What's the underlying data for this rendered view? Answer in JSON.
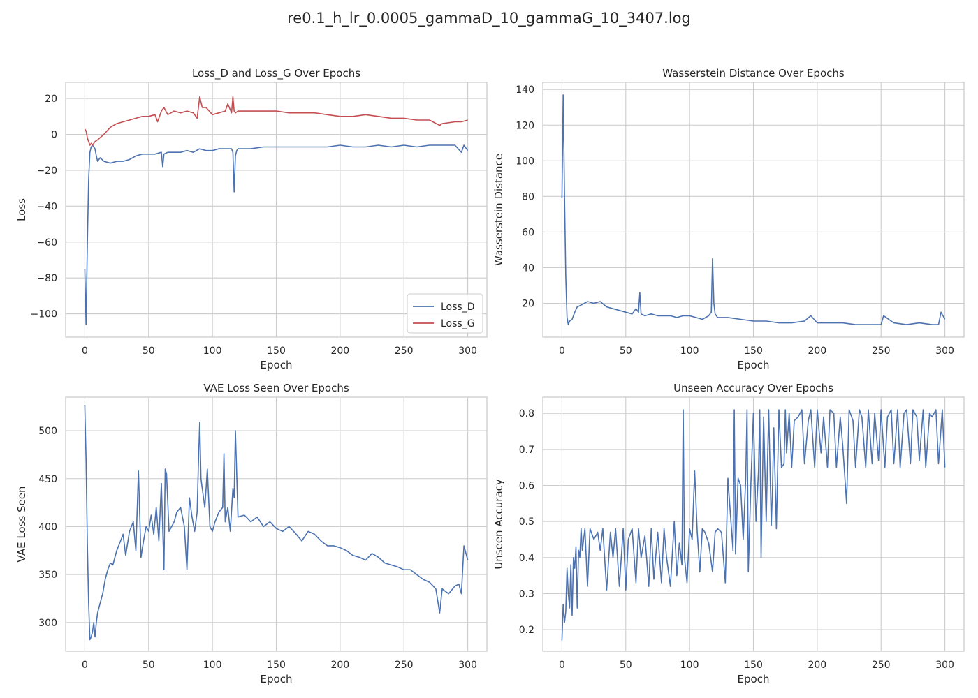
{
  "figure": {
    "title": "re0.1_h_lr_0.0005_gammaD_10_gammaG_10_3407.log"
  },
  "colors": {
    "blue": "#4c72b0",
    "red": "#c44e52",
    "grid": "#cccccc",
    "spine": "#cccccc",
    "text": "#262626"
  },
  "chart_data": [
    {
      "type": "line",
      "title": "Loss_D and Loss_G Over Epochs",
      "xlabel": "Epoch",
      "ylabel": "Loss",
      "xlim": [
        -15,
        315
      ],
      "ylim": [
        -113,
        29
      ],
      "xticks": [
        0,
        50,
        100,
        150,
        200,
        250,
        300
      ],
      "yticks": [
        -100,
        -80,
        -60,
        -40,
        -20,
        0,
        20
      ],
      "legend": "lower-right",
      "series": [
        {
          "name": "Loss_D",
          "color": "#4c72b0",
          "x": [
            0,
            1,
            2,
            3,
            4,
            5,
            6,
            7,
            8,
            9,
            10,
            12,
            15,
            20,
            25,
            30,
            35,
            40,
            45,
            50,
            55,
            60,
            61,
            62,
            65,
            70,
            75,
            80,
            85,
            90,
            95,
            100,
            105,
            110,
            115,
            116,
            117,
            118,
            119,
            120,
            125,
            130,
            140,
            150,
            160,
            170,
            180,
            190,
            200,
            210,
            220,
            230,
            240,
            250,
            260,
            270,
            280,
            290,
            295,
            297,
            300
          ],
          "values": [
            -75,
            -106,
            -60,
            -25,
            -10,
            -7,
            -6,
            -7,
            -8,
            -12,
            -15,
            -13,
            -15,
            -16,
            -15,
            -15,
            -14,
            -12,
            -11,
            -11,
            -11,
            -10,
            -18,
            -11,
            -10,
            -10,
            -10,
            -9,
            -10,
            -8,
            -9,
            -9,
            -8,
            -8,
            -8,
            -10,
            -32,
            -12,
            -9,
            -8,
            -8,
            -8,
            -7,
            -7,
            -7,
            -7,
            -7,
            -7,
            -6,
            -7,
            -7,
            -6,
            -7,
            -6,
            -7,
            -6,
            -6,
            -6,
            -10,
            -6,
            -9
          ]
        },
        {
          "name": "Loss_G",
          "color": "#c44e52",
          "x": [
            0,
            1,
            2,
            3,
            4,
            5,
            6,
            8,
            10,
            15,
            20,
            25,
            30,
            35,
            40,
            45,
            50,
            55,
            57,
            60,
            62,
            65,
            70,
            75,
            80,
            85,
            88,
            90,
            92,
            95,
            100,
            105,
            110,
            112,
            115,
            116,
            117,
            118,
            120,
            125,
            130,
            140,
            150,
            160,
            170,
            180,
            190,
            200,
            210,
            220,
            230,
            240,
            250,
            260,
            270,
            278,
            280,
            290,
            295,
            300
          ],
          "values": [
            3,
            2,
            -2,
            -4,
            -6,
            -5,
            -6,
            -4,
            -3,
            0,
            4,
            6,
            7,
            8,
            9,
            10,
            10,
            11,
            7,
            13,
            15,
            11,
            13,
            12,
            13,
            12,
            9,
            21,
            15,
            15,
            11,
            12,
            13,
            17,
            12,
            21,
            13,
            12,
            13,
            13,
            13,
            13,
            13,
            12,
            12,
            12,
            11,
            10,
            10,
            11,
            10,
            9,
            9,
            8,
            8,
            5,
            6,
            7,
            7,
            8
          ]
        }
      ]
    },
    {
      "type": "line",
      "title": "Wasserstein Distance Over Epochs",
      "xlabel": "Epoch",
      "ylabel": "Wasserstein Distance",
      "xlim": [
        -15,
        315
      ],
      "ylim": [
        1,
        144
      ],
      "xticks": [
        0,
        50,
        100,
        150,
        200,
        250,
        300
      ],
      "yticks": [
        20,
        40,
        60,
        80,
        100,
        120,
        140
      ],
      "series": [
        {
          "name": "",
          "color": "#4c72b0",
          "x": [
            0,
            1,
            2,
            3,
            4,
            5,
            6,
            8,
            10,
            12,
            15,
            20,
            25,
            30,
            35,
            40,
            45,
            50,
            55,
            58,
            60,
            61,
            62,
            65,
            70,
            75,
            80,
            85,
            90,
            95,
            100,
            105,
            110,
            115,
            117,
            118,
            119,
            120,
            122,
            125,
            130,
            140,
            150,
            160,
            170,
            180,
            190,
            195,
            200,
            210,
            220,
            230,
            240,
            250,
            252,
            260,
            270,
            280,
            290,
            295,
            297,
            300
          ],
          "values": [
            79,
            137,
            80,
            35,
            12,
            8,
            10,
            11,
            15,
            18,
            19,
            21,
            20,
            21,
            18,
            17,
            16,
            15,
            14,
            17,
            15,
            26,
            14,
            13,
            14,
            13,
            13,
            13,
            12,
            13,
            13,
            12,
            11,
            13,
            15,
            45,
            20,
            14,
            12,
            12,
            12,
            11,
            10,
            10,
            9,
            9,
            10,
            13,
            9,
            9,
            9,
            8,
            8,
            8,
            13,
            9,
            8,
            9,
            8,
            8,
            15,
            11
          ]
        }
      ]
    },
    {
      "type": "line",
      "title": "VAE Loss Seen Over Epochs",
      "xlabel": "Epoch",
      "ylabel": "VAE Loss Seen",
      "xlim": [
        -15,
        315
      ],
      "ylim": [
        270,
        535
      ],
      "xticks": [
        0,
        50,
        100,
        150,
        200,
        250,
        300
      ],
      "yticks": [
        300,
        350,
        400,
        450,
        500
      ],
      "series": [
        {
          "name": "",
          "color": "#4c72b0",
          "x": [
            0,
            1,
            2,
            3,
            4,
            5,
            6,
            7,
            8,
            9,
            10,
            12,
            14,
            16,
            18,
            20,
            22,
            25,
            28,
            30,
            32,
            35,
            38,
            40,
            42,
            44,
            46,
            48,
            50,
            52,
            54,
            56,
            58,
            60,
            62,
            63,
            64,
            66,
            68,
            70,
            72,
            75,
            78,
            80,
            82,
            84,
            86,
            88,
            89,
            90,
            91,
            92,
            94,
            96,
            98,
            100,
            102,
            105,
            108,
            109,
            110,
            112,
            114,
            116,
            117,
            118,
            120,
            125,
            130,
            135,
            140,
            145,
            150,
            155,
            160,
            165,
            170,
            175,
            180,
            185,
            190,
            195,
            200,
            205,
            210,
            215,
            220,
            225,
            230,
            235,
            240,
            245,
            250,
            255,
            260,
            265,
            270,
            275,
            278,
            280,
            285,
            290,
            293,
            295,
            297,
            300
          ],
          "values": [
            527,
            470,
            380,
            320,
            282,
            285,
            290,
            300,
            285,
            300,
            310,
            320,
            330,
            345,
            355,
            362,
            360,
            375,
            385,
            392,
            370,
            395,
            405,
            375,
            458,
            368,
            385,
            400,
            395,
            412,
            392,
            420,
            385,
            445,
            355,
            460,
            455,
            395,
            400,
            405,
            415,
            420,
            400,
            355,
            430,
            410,
            395,
            415,
            465,
            509,
            450,
            440,
            420,
            460,
            400,
            395,
            405,
            415,
            420,
            476,
            405,
            420,
            395,
            440,
            430,
            500,
            410,
            412,
            405,
            410,
            400,
            405,
            398,
            395,
            400,
            393,
            385,
            395,
            392,
            385,
            380,
            380,
            378,
            375,
            370,
            368,
            365,
            372,
            368,
            362,
            360,
            358,
            355,
            355,
            350,
            345,
            342,
            335,
            310,
            335,
            330,
            338,
            340,
            330,
            380,
            365
          ]
        }
      ]
    },
    {
      "type": "line",
      "title": "Unseen Accuracy Over Epochs",
      "xlabel": "Epoch",
      "ylabel": "Unseen Accuracy",
      "xlim": [
        -15,
        315
      ],
      "ylim": [
        0.14,
        0.845
      ],
      "xticks": [
        0,
        50,
        100,
        150,
        200,
        250,
        300
      ],
      "yticks": [
        0.2,
        0.3,
        0.4,
        0.5,
        0.6,
        0.7,
        0.8
      ],
      "series": [
        {
          "name": "",
          "color": "#4c72b0",
          "x": [
            0,
            1,
            2,
            3,
            4,
            5,
            6,
            7,
            8,
            9,
            10,
            11,
            12,
            13,
            14,
            15,
            16,
            18,
            20,
            22,
            25,
            28,
            30,
            32,
            35,
            38,
            40,
            42,
            45,
            48,
            50,
            52,
            55,
            58,
            60,
            62,
            65,
            68,
            70,
            72,
            75,
            78,
            80,
            82,
            85,
            88,
            90,
            92,
            94,
            95,
            96,
            98,
            100,
            102,
            104,
            106,
            108,
            110,
            112,
            115,
            118,
            120,
            122,
            125,
            128,
            130,
            132,
            134,
            135,
            136,
            138,
            140,
            142,
            144,
            145,
            146,
            148,
            150,
            152,
            154,
            155,
            156,
            158,
            160,
            162,
            164,
            165,
            166,
            168,
            170,
            172,
            174,
            175,
            176,
            178,
            180,
            182,
            185,
            188,
            190,
            193,
            195,
            198,
            200,
            203,
            205,
            208,
            210,
            213,
            215,
            218,
            220,
            223,
            225,
            228,
            230,
            233,
            235,
            238,
            240,
            243,
            245,
            248,
            250,
            253,
            255,
            258,
            260,
            263,
            265,
            268,
            270,
            273,
            275,
            278,
            280,
            283,
            285,
            288,
            290,
            293,
            295,
            298,
            300
          ],
          "values": [
            0.17,
            0.27,
            0.22,
            0.25,
            0.37,
            0.3,
            0.26,
            0.38,
            0.24,
            0.4,
            0.37,
            0.43,
            0.26,
            0.42,
            0.4,
            0.48,
            0.42,
            0.48,
            0.32,
            0.48,
            0.45,
            0.47,
            0.42,
            0.48,
            0.31,
            0.47,
            0.4,
            0.48,
            0.32,
            0.48,
            0.31,
            0.45,
            0.48,
            0.33,
            0.48,
            0.4,
            0.46,
            0.32,
            0.48,
            0.34,
            0.47,
            0.33,
            0.48,
            0.4,
            0.32,
            0.5,
            0.35,
            0.44,
            0.38,
            0.81,
            0.4,
            0.33,
            0.48,
            0.45,
            0.64,
            0.47,
            0.36,
            0.48,
            0.47,
            0.44,
            0.36,
            0.47,
            0.48,
            0.47,
            0.33,
            0.62,
            0.52,
            0.42,
            0.81,
            0.41,
            0.62,
            0.6,
            0.45,
            0.62,
            0.81,
            0.36,
            0.6,
            0.8,
            0.5,
            0.64,
            0.81,
            0.4,
            0.79,
            0.5,
            0.81,
            0.49,
            0.6,
            0.76,
            0.48,
            0.81,
            0.65,
            0.66,
            0.81,
            0.69,
            0.8,
            0.65,
            0.78,
            0.79,
            0.81,
            0.66,
            0.78,
            0.81,
            0.65,
            0.81,
            0.69,
            0.79,
            0.65,
            0.81,
            0.8,
            0.65,
            0.79,
            0.71,
            0.55,
            0.81,
            0.78,
            0.65,
            0.81,
            0.79,
            0.65,
            0.81,
            0.66,
            0.8,
            0.67,
            0.81,
            0.65,
            0.79,
            0.81,
            0.66,
            0.81,
            0.65,
            0.8,
            0.81,
            0.66,
            0.81,
            0.79,
            0.67,
            0.81,
            0.65,
            0.8,
            0.79,
            0.81,
            0.66,
            0.81,
            0.65
          ]
        }
      ]
    }
  ]
}
